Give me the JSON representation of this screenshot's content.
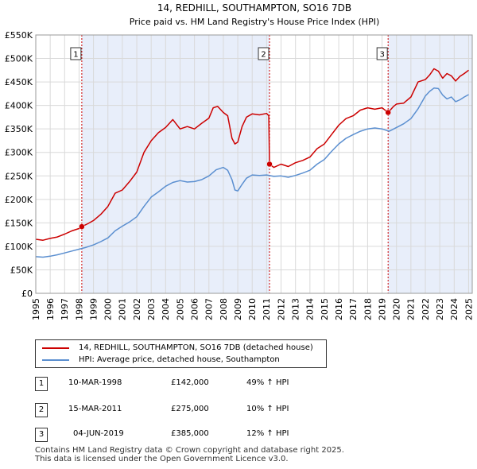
{
  "chart_data": {
    "type": "line",
    "title": "14, REDHILL, SOUTHAMPTON, SO16 7DB",
    "subtitle": "Price paid vs. HM Land Registry's House Price Index (HPI)",
    "xlim": [
      1995,
      2025.25
    ],
    "ylim": [
      0,
      550000
    ],
    "x_ticks": [
      1995,
      1996,
      1997,
      1998,
      1999,
      2000,
      2001,
      2002,
      2003,
      2004,
      2005,
      2006,
      2007,
      2008,
      2009,
      2010,
      2011,
      2012,
      2013,
      2014,
      2015,
      2016,
      2017,
      2018,
      2019,
      2020,
      2021,
      2022,
      2023,
      2024,
      2025
    ],
    "x_tick_labels": [
      "1995",
      "1996",
      "1997",
      "1998",
      "1999",
      "2000",
      "2001",
      "2002",
      "2003",
      "2004",
      "2005",
      "2006",
      "2007",
      "2008",
      "2009",
      "2010",
      "2011",
      "2012",
      "2013",
      "2014",
      "2015",
      "2016",
      "2017",
      "2018",
      "2019",
      "2020",
      "2021",
      "2022",
      "2023",
      "2024",
      "2025"
    ],
    "y_ticks": [
      0,
      50000,
      100000,
      150000,
      200000,
      250000,
      300000,
      350000,
      400000,
      450000,
      500000,
      550000
    ],
    "y_tick_labels": [
      "£0",
      "£50K",
      "£100K",
      "£150K",
      "£200K",
      "£250K",
      "£300K",
      "£350K",
      "£400K",
      "£450K",
      "£500K",
      "£550K"
    ],
    "shaded_ranges": [
      [
        1998.19,
        2011.2
      ],
      [
        2019.42,
        2025.25
      ]
    ],
    "grid": true,
    "series": [
      {
        "name": "14, REDHILL, SOUTHAMPTON, SO16 7DB (detached house)",
        "color": "#cc0000",
        "x": [
          1995,
          1995.5,
          1996,
          1996.5,
          1997,
          1997.5,
          1998,
          1998.19,
          1998.6,
          1999,
          1999.5,
          2000,
          2000.5,
          2001,
          2001.5,
          2002,
          2002.5,
          2003,
          2003.5,
          2004,
          2004.5,
          2005,
          2005.5,
          2006,
          2006.5,
          2007,
          2007.3,
          2007.6,
          2008,
          2008.3,
          2008.6,
          2008.8,
          2009,
          2009.3,
          2009.6,
          2010,
          2010.5,
          2011,
          2011.15,
          2011.2,
          2011.5,
          2012,
          2012.5,
          2013,
          2013.5,
          2014,
          2014.5,
          2015,
          2015.5,
          2016,
          2016.5,
          2017,
          2017.5,
          2018,
          2018.5,
          2019,
          2019.42,
          2019.8,
          2020,
          2020.5,
          2021,
          2021.5,
          2022,
          2022.3,
          2022.6,
          2022.9,
          2023.2,
          2023.5,
          2023.8,
          2024.1,
          2024.4,
          2024.7,
          2025
        ],
        "y": [
          115000,
          113000,
          117000,
          120000,
          126000,
          133000,
          138000,
          142000,
          148000,
          155000,
          168000,
          185000,
          213000,
          220000,
          238000,
          258000,
          300000,
          325000,
          342000,
          353000,
          370000,
          350000,
          355000,
          350000,
          362000,
          373000,
          395000,
          398000,
          385000,
          378000,
          330000,
          318000,
          322000,
          355000,
          375000,
          382000,
          380000,
          383000,
          378000,
          275000,
          268000,
          275000,
          270000,
          278000,
          283000,
          290000,
          308000,
          318000,
          338000,
          358000,
          372000,
          378000,
          390000,
          395000,
          392000,
          395000,
          385000,
          398000,
          403000,
          405000,
          418000,
          450000,
          455000,
          465000,
          478000,
          473000,
          458000,
          468000,
          463000,
          452000,
          462000,
          468000,
          475000
        ]
      },
      {
        "name": "HPI: Average price, detached house, Southampton",
        "color": "#5b8fd0",
        "x": [
          1995,
          1995.5,
          1996,
          1996.5,
          1997,
          1997.5,
          1998,
          1998.5,
          1999,
          1999.5,
          2000,
          2000.5,
          2001,
          2001.5,
          2002,
          2002.5,
          2003,
          2003.5,
          2004,
          2004.5,
          2005,
          2005.5,
          2006,
          2006.5,
          2007,
          2007.5,
          2008,
          2008.3,
          2008.6,
          2008.8,
          2009,
          2009.3,
          2009.6,
          2010,
          2010.5,
          2011,
          2011.5,
          2012,
          2012.5,
          2013,
          2013.5,
          2014,
          2014.5,
          2015,
          2015.5,
          2016,
          2016.5,
          2017,
          2017.5,
          2018,
          2018.5,
          2019,
          2019.5,
          2020,
          2020.5,
          2021,
          2021.5,
          2022,
          2022.3,
          2022.6,
          2022.9,
          2023.2,
          2023.5,
          2023.8,
          2024.1,
          2024.4,
          2024.7,
          2025
        ],
        "y": [
          78000,
          77000,
          79000,
          82000,
          86000,
          90000,
          94000,
          98000,
          103000,
          110000,
          118000,
          133000,
          143000,
          152000,
          163000,
          185000,
          205000,
          216000,
          228000,
          236000,
          240000,
          237000,
          238000,
          242000,
          250000,
          263000,
          268000,
          262000,
          242000,
          220000,
          218000,
          232000,
          245000,
          252000,
          251000,
          252000,
          249000,
          250000,
          247000,
          251000,
          256000,
          262000,
          275000,
          285000,
          302000,
          318000,
          330000,
          338000,
          345000,
          350000,
          352000,
          350000,
          345000,
          353000,
          361000,
          372000,
          393000,
          420000,
          430000,
          437000,
          436000,
          422000,
          414000,
          418000,
          408000,
          412000,
          418000,
          423000
        ]
      }
    ],
    "markers": [
      {
        "label": "1",
        "x": 1998.19,
        "y": 142000
      },
      {
        "label": "2",
        "x": 2011.2,
        "y": 275000
      },
      {
        "label": "3",
        "x": 2019.42,
        "y": 385000
      }
    ]
  },
  "legend": {
    "item1": "14, REDHILL, SOUTHAMPTON, SO16 7DB (detached house)",
    "item2": "HPI: Average price, detached house, Southampton"
  },
  "transactions": [
    {
      "num": "1",
      "date": "10-MAR-1998",
      "price": "£142,000",
      "hpi": "49% ↑ HPI"
    },
    {
      "num": "2",
      "date": "15-MAR-2011",
      "price": "£275,000",
      "hpi": "10% ↑ HPI"
    },
    {
      "num": "3",
      "date": "04-JUN-2019",
      "price": "£385,000",
      "hpi": "12% ↑ HPI"
    }
  ],
  "footer": {
    "line1": "Contains HM Land Registry data © Crown copyright and database right 2025.",
    "line2": "This data is licensed under the Open Government Licence v3.0."
  }
}
